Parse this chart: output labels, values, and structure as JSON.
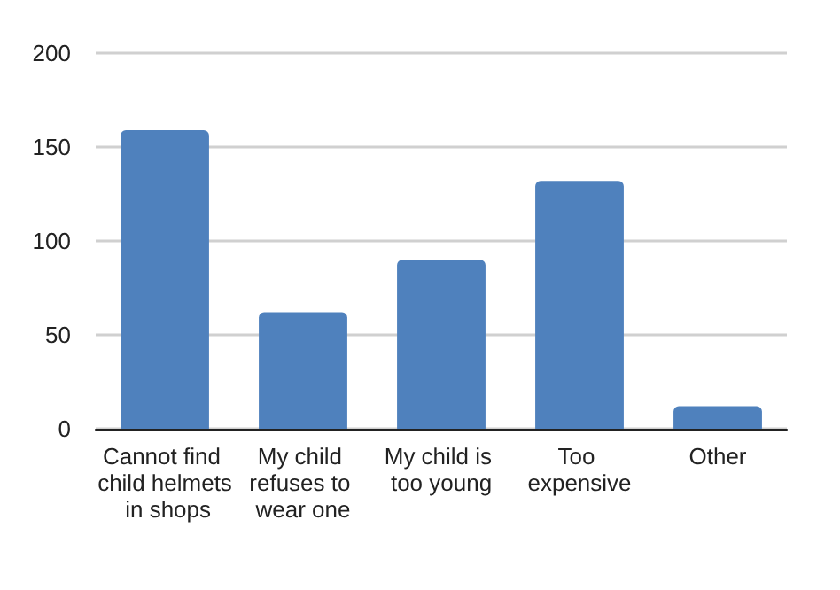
{
  "chart_data": {
    "type": "bar",
    "categories": [
      "Cannot find child helmets in shops",
      "My child refuses to wear one",
      "My child is too young",
      "Too expensive",
      "Other"
    ],
    "values": [
      159,
      62,
      90,
      132,
      12
    ],
    "color": "#4f81bd",
    "ylim": [
      0,
      200
    ],
    "yticks": [
      0,
      50,
      100,
      150,
      200
    ],
    "grid": "y"
  }
}
